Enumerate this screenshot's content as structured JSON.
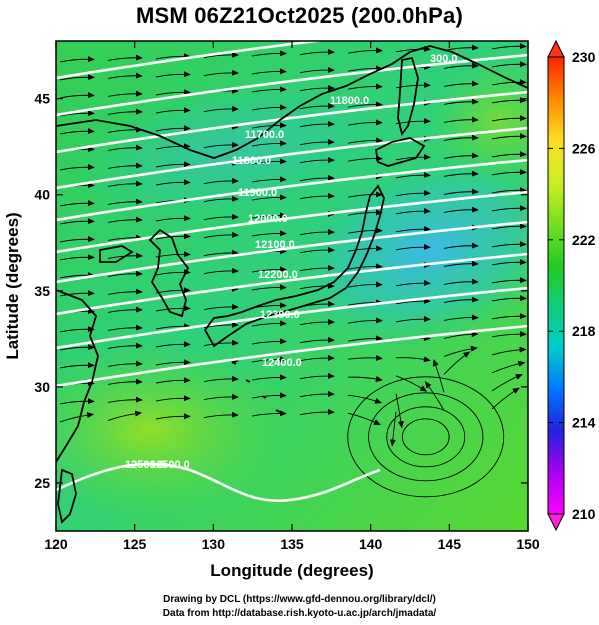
{
  "title": "MSM 06Z21Oct2025 (200.0hPa)",
  "map": {
    "lon_range": [
      120,
      150
    ],
    "lat_range": [
      22.5,
      48
    ],
    "x_axis": {
      "label": "Longitude (degrees)",
      "ticks": [
        "120",
        "125",
        "130",
        "135",
        "140",
        "145",
        "150"
      ]
    },
    "y_axis": {
      "label": "Latitude  (degrees)",
      "ticks": [
        "25",
        "30",
        "35",
        "40",
        "45"
      ]
    },
    "contour_labels": [
      "300.0",
      "11800.0",
      "11700.0",
      "11800.0",
      "11900.0",
      "12000.0",
      "12100.0",
      "12200.0",
      "12300.0",
      "12400.0",
      "12500.0",
      "12500.0"
    ],
    "cyclone_center": {
      "lon": 143.5,
      "lat": 27.4
    },
    "colors": {
      "cool": "#3fb7e8",
      "mid": "#1fcf6a",
      "warm": "#7fe020",
      "contour": "#ffffff",
      "coast": "#000000"
    }
  },
  "colorbar": {
    "ticks": [
      "230",
      "226",
      "222",
      "218",
      "214",
      "210"
    ],
    "stops": [
      "#ff00ff",
      "#aa00ee",
      "#2222dd",
      "#0077ff",
      "#00cccc",
      "#11cc77",
      "#22cc22",
      "#77e022",
      "#ccee22",
      "#ffdd22",
      "#ff8800",
      "#ff2200"
    ]
  },
  "footer": {
    "line1": "Drawing by DCL (https://www.gfd-dennou.org/library/dcl/)",
    "line2": "Data from http://database.rish.kyoto-u.ac.jp/arch/jmadata/"
  }
}
